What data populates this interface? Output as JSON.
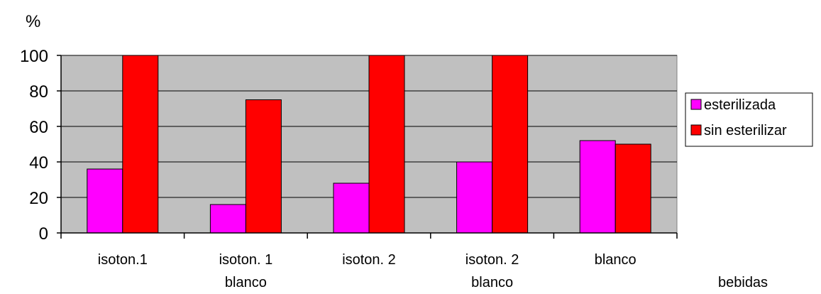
{
  "chart_data": {
    "type": "bar",
    "title": "",
    "ylabel": "%",
    "xlabel": "bebidas",
    "ylim": [
      0,
      100
    ],
    "yticks": [
      0,
      20,
      40,
      60,
      80,
      100
    ],
    "grid": true,
    "legend_position": "right",
    "categories": [
      [
        "isoton.1"
      ],
      [
        "isoton. 1",
        "blanco"
      ],
      [
        "isoton. 2"
      ],
      [
        "isoton. 2",
        "blanco"
      ],
      [
        "blanco"
      ]
    ],
    "series": [
      {
        "name": "esterilizada",
        "color": "#ff00ff",
        "values": [
          36,
          16,
          28,
          40,
          52
        ]
      },
      {
        "name": "sin esterilizar",
        "color": "#ff0000",
        "values": [
          100,
          75,
          100,
          100,
          50
        ]
      }
    ],
    "plot_background": "#c0c0c0"
  }
}
